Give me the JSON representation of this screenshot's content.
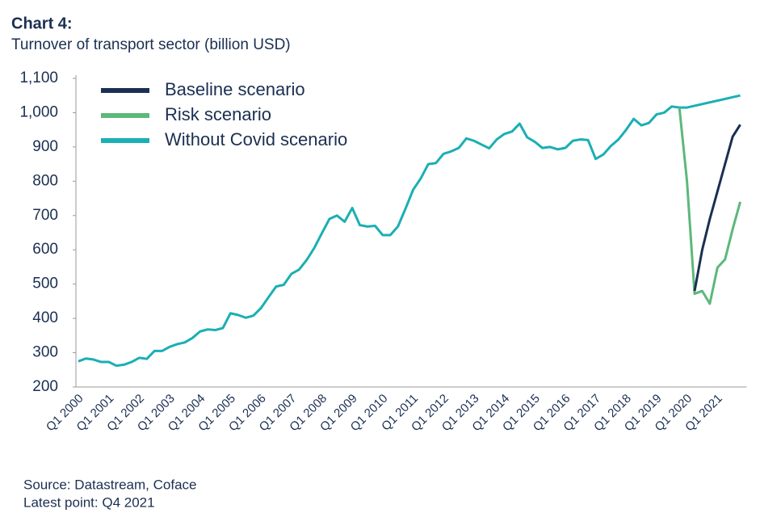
{
  "chart_data": {
    "type": "line",
    "title": "Chart 4:",
    "subtitle": "Turnover of transport sector (billion USD)",
    "source": "Source: Datastream, Coface",
    "note": "Latest point: Q4 2021",
    "categories": [
      "Q1 2000",
      null,
      null,
      null,
      "Q1 2001",
      null,
      null,
      null,
      "Q1 2002",
      null,
      null,
      null,
      "Q1 2003",
      null,
      null,
      null,
      "Q1 2004",
      null,
      null,
      null,
      "Q1 2005",
      null,
      null,
      null,
      "Q1 2006",
      null,
      null,
      null,
      "Q1 2007",
      null,
      null,
      null,
      "Q1 2008",
      null,
      null,
      null,
      "Q1 2009",
      null,
      null,
      null,
      "Q1 2010",
      null,
      null,
      null,
      "Q1 2011",
      null,
      null,
      null,
      "Q1 2012",
      null,
      null,
      null,
      "Q1 2013",
      null,
      null,
      null,
      "Q1 2014",
      null,
      null,
      null,
      "Q1 2015",
      null,
      null,
      null,
      "Q1 2016",
      null,
      null,
      null,
      "Q1 2017",
      null,
      null,
      null,
      "Q1 2018",
      null,
      null,
      null,
      "Q1 2019",
      null,
      null,
      null,
      "Q1 2020",
      null,
      null,
      null,
      "Q1 2021",
      null,
      null,
      null
    ],
    "series": [
      {
        "name": "Baseline scenario",
        "color": "#1b2f52",
        "values": [
          null,
          null,
          null,
          null,
          null,
          null,
          null,
          null,
          null,
          null,
          null,
          null,
          null,
          null,
          null,
          null,
          null,
          null,
          null,
          null,
          null,
          null,
          null,
          null,
          null,
          null,
          null,
          null,
          null,
          null,
          null,
          null,
          null,
          null,
          null,
          null,
          null,
          null,
          null,
          null,
          null,
          null,
          null,
          null,
          null,
          null,
          null,
          null,
          null,
          null,
          null,
          null,
          null,
          null,
          null,
          null,
          null,
          null,
          null,
          null,
          null,
          null,
          null,
          null,
          null,
          null,
          null,
          null,
          null,
          null,
          null,
          null,
          null,
          null,
          null,
          null,
          null,
          null,
          null,
          null,
          null,
          480,
          600,
          690,
          770,
          850,
          930,
          965
        ]
      },
      {
        "name": "Risk scenario",
        "color": "#5cb87a",
        "values": [
          null,
          null,
          null,
          null,
          null,
          null,
          null,
          null,
          null,
          null,
          null,
          null,
          null,
          null,
          null,
          null,
          null,
          null,
          null,
          null,
          null,
          null,
          null,
          null,
          null,
          null,
          null,
          null,
          null,
          null,
          null,
          null,
          null,
          null,
          null,
          null,
          null,
          null,
          null,
          null,
          null,
          null,
          null,
          null,
          null,
          null,
          null,
          null,
          null,
          null,
          null,
          null,
          null,
          null,
          null,
          null,
          null,
          null,
          null,
          null,
          null,
          null,
          null,
          null,
          null,
          null,
          null,
          null,
          null,
          null,
          null,
          null,
          null,
          null,
          null,
          null,
          null,
          null,
          null,
          1015,
          800,
          472,
          480,
          443,
          548,
          572,
          660,
          740
        ]
      },
      {
        "name": "Without Covid scenario",
        "color": "#1aafb4",
        "values": [
          275,
          283,
          280,
          273,
          273,
          262,
          265,
          273,
          285,
          282,
          305,
          305,
          317,
          325,
          330,
          343,
          362,
          368,
          366,
          372,
          415,
          410,
          402,
          408,
          430,
          462,
          493,
          498,
          530,
          542,
          570,
          605,
          648,
          690,
          700,
          682,
          722,
          672,
          668,
          670,
          643,
          643,
          668,
          720,
          775,
          808,
          850,
          853,
          880,
          887,
          897,
          925,
          918,
          907,
          896,
          922,
          938,
          945,
          968,
          928,
          915,
          897,
          900,
          893,
          897,
          918,
          922,
          920,
          865,
          878,
          903,
          922,
          950,
          982,
          963,
          970,
          995,
          1000,
          1018,
          1015,
          1015,
          1020,
          1025,
          1030,
          1035,
          1040,
          1045,
          1050
        ]
      }
    ],
    "ylim": [
      200,
      1100
    ],
    "yticks": [
      200,
      300,
      400,
      500,
      600,
      700,
      800,
      900,
      {
        "value": 1000,
        "label": "1,000"
      },
      {
        "value": 1100,
        "label": "1,100"
      }
    ]
  }
}
